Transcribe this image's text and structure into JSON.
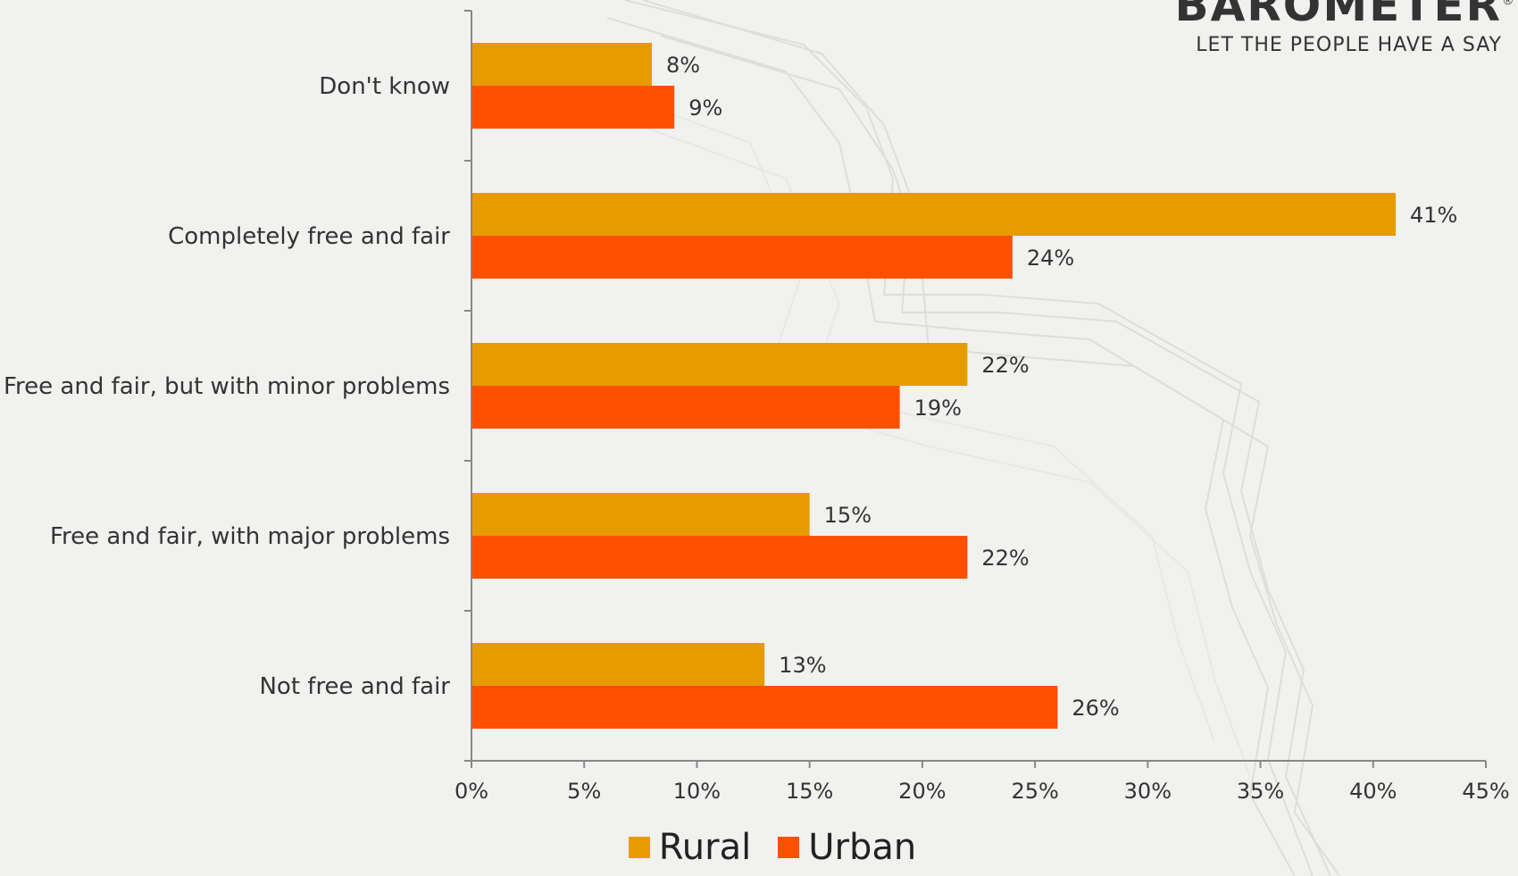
{
  "brand": {
    "name": "BAROMETER",
    "registered_mark": "®",
    "tagline": "LET THE PEOPLE HAVE A SAY"
  },
  "colors": {
    "background": "#f1f1ef",
    "rural": "#e69b00",
    "urban": "#ff5000",
    "axis": "#888888",
    "text": "#333333"
  },
  "chart_data": {
    "type": "bar",
    "orientation": "horizontal",
    "categories": [
      "Don't know",
      "Completely free and fair",
      "Free and fair, but with minor problems",
      "Free and fair, with major problems",
      "Not free and fair"
    ],
    "series": [
      {
        "name": "Rural",
        "values": [
          8,
          41,
          22,
          15,
          13
        ]
      },
      {
        "name": "Urban",
        "values": [
          9,
          24,
          19,
          22,
          26
        ]
      }
    ],
    "value_format": "{v}%",
    "xlim": [
      0,
      45
    ],
    "xticks": [
      0,
      5,
      10,
      15,
      20,
      25,
      30,
      35,
      40,
      45
    ],
    "xtick_labels": [
      "0%",
      "5%",
      "10%",
      "15%",
      "20%",
      "25%",
      "30%",
      "35%",
      "40%",
      "45%"
    ],
    "legend": [
      "Rural",
      "Urban"
    ],
    "legend_position": "bottom",
    "grid": false
  }
}
